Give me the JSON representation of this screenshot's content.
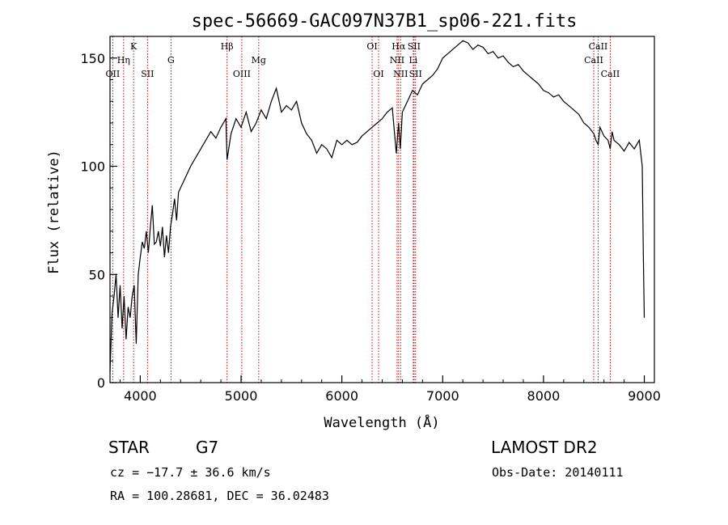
{
  "chart_data": {
    "type": "line",
    "title": "spec-56669-GAC097N37B1_sp06-221.fits",
    "xlabel": "Wavelength (Å)",
    "ylabel": "Flux (relative)",
    "xlim": [
      3700,
      9100
    ],
    "ylim": [
      0,
      160
    ],
    "xticks": [
      4000,
      5000,
      6000,
      7000,
      8000,
      9000
    ],
    "yticks": [
      0,
      50,
      100,
      150
    ],
    "grid": false,
    "series": [
      {
        "x": [
          3700,
          3720,
          3740,
          3760,
          3780,
          3800,
          3820,
          3840,
          3860,
          3880,
          3900,
          3920,
          3940,
          3960,
          3980,
          4000,
          4020,
          4040,
          4060,
          4080,
          4100,
          4120,
          4140,
          4160,
          4180,
          4200,
          4220,
          4240,
          4260,
          4280,
          4300,
          4320,
          4340,
          4360,
          4380,
          4400,
          4450,
          4500,
          4550,
          4600,
          4650,
          4700,
          4750,
          4800,
          4850,
          4861,
          4900,
          4950,
          5000,
          5050,
          5100,
          5150,
          5200,
          5250,
          5300,
          5350,
          5400,
          5450,
          5500,
          5550,
          5600,
          5650,
          5700,
          5750,
          5800,
          5850,
          5900,
          5950,
          6000,
          6050,
          6100,
          6150,
          6200,
          6250,
          6300,
          6350,
          6400,
          6450,
          6500,
          6540,
          6563,
          6580,
          6600,
          6650,
          6700,
          6750,
          6800,
          6850,
          6900,
          6950,
          7000,
          7050,
          7100,
          7150,
          7200,
          7250,
          7300,
          7350,
          7400,
          7450,
          7500,
          7550,
          7600,
          7650,
          7700,
          7750,
          7800,
          7850,
          7900,
          7950,
          8000,
          8050,
          8100,
          8150,
          8200,
          8250,
          8300,
          8350,
          8400,
          8450,
          8500,
          8520,
          8542,
          8560,
          8600,
          8640,
          8662,
          8680,
          8700,
          8750,
          8800,
          8850,
          8900,
          8950,
          8980,
          8990,
          9000
        ],
        "y": [
          5,
          32,
          40,
          50,
          30,
          45,
          25,
          40,
          20,
          35,
          30,
          40,
          45,
          18,
          50,
          58,
          65,
          62,
          70,
          60,
          72,
          82,
          64,
          65,
          70,
          63,
          72,
          58,
          68,
          60,
          72,
          78,
          85,
          75,
          88,
          90,
          95,
          100,
          104,
          108,
          112,
          116,
          113,
          118,
          122,
          103,
          115,
          122,
          118,
          125,
          116,
          120,
          126,
          122,
          130,
          136,
          125,
          128,
          126,
          130,
          120,
          115,
          112,
          106,
          110,
          108,
          104,
          112,
          110,
          112,
          110,
          111,
          114,
          116,
          118,
          120,
          122,
          125,
          127,
          106,
          120,
          108,
          125,
          130,
          135,
          133,
          138,
          140,
          142,
          145,
          150,
          152,
          154,
          156,
          158,
          157,
          154,
          156,
          155,
          152,
          153,
          150,
          151,
          148,
          146,
          147,
          144,
          142,
          140,
          138,
          135,
          134,
          132,
          133,
          130,
          128,
          126,
          124,
          120,
          118,
          115,
          112,
          110,
          118,
          114,
          112,
          108,
          116,
          112,
          110,
          107,
          111,
          108,
          112,
          100,
          60,
          30
        ]
      }
    ],
    "lines": [
      {
        "name": "OII",
        "x": 3727,
        "row": 3
      },
      {
        "name": "Hη",
        "x": 3835,
        "row": 2
      },
      {
        "name": "K",
        "x": 3934,
        "row": 1
      },
      {
        "name": "SII",
        "x": 4072,
        "row": 3
      },
      {
        "name": "G",
        "x": 4305,
        "row": 2
      },
      {
        "name": "Hβ",
        "x": 4861,
        "row": 1
      },
      {
        "name": "OIII",
        "x": 5007,
        "row": 3
      },
      {
        "name": "Mg",
        "x": 5175,
        "row": 2
      },
      {
        "name": "OI",
        "x": 6300,
        "row": 1
      },
      {
        "name": "OI",
        "x": 6364,
        "row": 3
      },
      {
        "name": "NII",
        "x": 6548,
        "row": 2
      },
      {
        "name": "Hα",
        "x": 6563,
        "row": 1
      },
      {
        "name": "NII",
        "x": 6583,
        "row": 3
      },
      {
        "name": "SII",
        "x": 6716,
        "row": 1
      },
      {
        "name": "Li",
        "x": 6708,
        "row": 2
      },
      {
        "name": "SII",
        "x": 6731,
        "row": 3
      },
      {
        "name": "CaII",
        "x": 8498,
        "row": 2
      },
      {
        "name": "CaII",
        "x": 8542,
        "row": 1
      },
      {
        "name": "CaII",
        "x": 8662,
        "row": 3
      }
    ]
  },
  "info": {
    "object_type": "STAR",
    "subclass": "G7",
    "survey": "LAMOST DR2",
    "cz": "cz = −17.7 ± 36.6 km/s",
    "obs_date": "Obs-Date: 20140111",
    "coords": "RA = 100.28681, DEC =  36.02483"
  },
  "colors": {
    "spectrum": "#000000",
    "line_markers": "#cc0000",
    "text": "#000000"
  }
}
